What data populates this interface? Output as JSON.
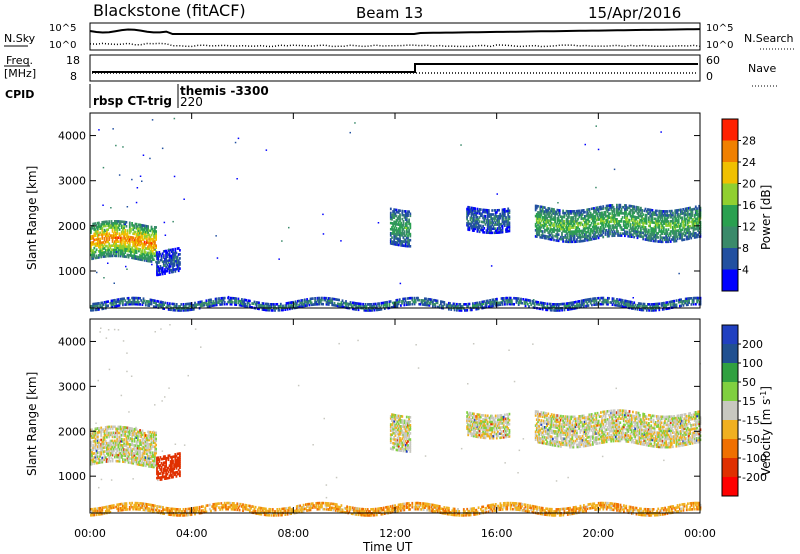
{
  "header": {
    "station": "Blackstone (fitACF)",
    "beam": "Beam 13",
    "date": "15/Apr/2016"
  },
  "noise_panel": {
    "left_label": "N.Sky",
    "right_label": "N.Search",
    "left_ticks": [
      "10^5",
      "10^0"
    ],
    "right_ticks": [
      "10^5",
      "10^0"
    ]
  },
  "freq_panel": {
    "left_label_1": "Freq.",
    "left_label_2": "[MHz]",
    "right_label": "Nave",
    "left_ticks": [
      "18",
      "8"
    ],
    "right_ticks": [
      "60",
      "0"
    ]
  },
  "cpid_panel": {
    "label": "CPID",
    "entries": [
      "rbsp CT-trig",
      "themis -3300",
      "220"
    ]
  },
  "colors": {
    "power": [
      "#0000ff",
      "#2250a0",
      "#3a8a6a",
      "#2aa050",
      "#90d030",
      "#f0c000",
      "#f08000",
      "#ff2000"
    ],
    "velocity": [
      "#2040c0",
      "#205090",
      "#30a040",
      "#80d040",
      "#c8c8c0",
      "#f0b020",
      "#f07000",
      "#e03000",
      "#ff0000"
    ],
    "ground_scatter": "#c8c8c0"
  },
  "chart_data": [
    {
      "type": "heatmap",
      "title": "",
      "xlabel": "",
      "ylabel": "Slant Range [km]",
      "xlim": [
        "00:00",
        "00:00"
      ],
      "ylim": [
        180,
        4500
      ],
      "x_ticks": [
        "00:00",
        "04:00",
        "08:00",
        "12:00",
        "16:00",
        "20:00",
        "00:00"
      ],
      "y_ticks": [
        "1000",
        "2000",
        "3000",
        "4000"
      ],
      "colorbar_label": "Power [dB]",
      "colorbar_ticks": [
        "4",
        "8",
        "12",
        "16",
        "20",
        "24",
        "28"
      ],
      "colorbar_range": [
        0,
        32
      ],
      "scatter_regions": [
        {
          "start_h": 0.0,
          "end_h": 2.6,
          "range_low_km": 1250,
          "range_high_km": 2050,
          "value": 22
        },
        {
          "start_h": 2.6,
          "end_h": 3.5,
          "range_low_km": 950,
          "range_high_km": 1450,
          "value": 6
        },
        {
          "start_h": 11.8,
          "end_h": 12.6,
          "range_low_km": 1600,
          "range_high_km": 2400,
          "value": 12
        },
        {
          "start_h": 14.8,
          "end_h": 16.5,
          "range_low_km": 1900,
          "range_high_km": 2400,
          "value": 8
        },
        {
          "start_h": 17.5,
          "end_h": 24.0,
          "range_low_km": 1700,
          "range_high_km": 2400,
          "value": 14
        },
        {
          "start_h": 0.0,
          "end_h": 24.0,
          "range_low_km": 180,
          "range_high_km": 320,
          "value": 10
        }
      ]
    },
    {
      "type": "heatmap",
      "title": "",
      "xlabel": "Time UT",
      "ylabel": "Slant Range [km]",
      "xlim": [
        "00:00",
        "00:00"
      ],
      "ylim": [
        180,
        4500
      ],
      "x_ticks": [
        "00:00",
        "04:00",
        "08:00",
        "12:00",
        "16:00",
        "20:00",
        "00:00"
      ],
      "y_ticks": [
        "1000",
        "2000",
        "3000",
        "4000"
      ],
      "colorbar_label": "Velocity [m s^-1]",
      "colorbar_ticks": [
        "200",
        "100",
        "50",
        "15",
        "-15",
        "-50",
        "-100",
        "-200"
      ],
      "colorbar_range": [
        -250,
        250
      ],
      "scatter_regions": [
        {
          "start_h": 0.0,
          "end_h": 2.6,
          "range_low_km": 1250,
          "range_high_km": 2050,
          "value": 0
        },
        {
          "start_h": 2.6,
          "end_h": 3.5,
          "range_low_km": 950,
          "range_high_km": 1450,
          "value": -150
        },
        {
          "start_h": 11.8,
          "end_h": 12.6,
          "range_low_km": 1600,
          "range_high_km": 2400,
          "value": 0
        },
        {
          "start_h": 14.8,
          "end_h": 16.5,
          "range_low_km": 1900,
          "range_high_km": 2400,
          "value": 0
        },
        {
          "start_h": 17.5,
          "end_h": 24.0,
          "range_low_km": 1700,
          "range_high_km": 2400,
          "value": 0
        },
        {
          "start_h": 0.0,
          "end_h": 24.0,
          "range_low_km": 180,
          "range_high_km": 320,
          "value": -40
        }
      ]
    }
  ]
}
